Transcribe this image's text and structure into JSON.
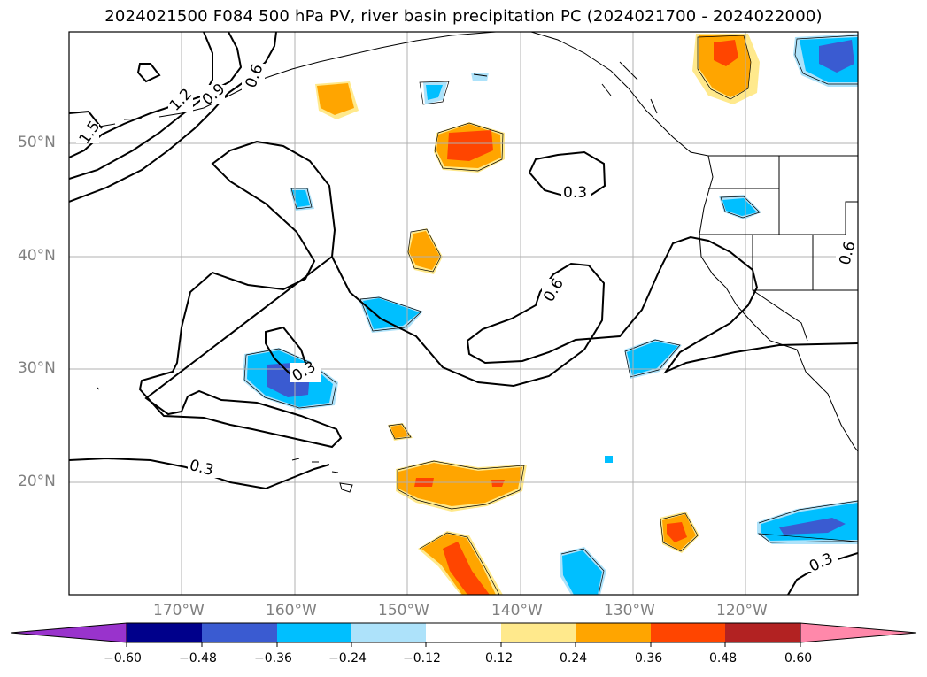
{
  "title": "2024021500 F084 500 hPa PV, river basin precipitation PC (2024021700 - 2024022000)",
  "lat_labels": [
    "50°N",
    "40°N",
    "30°N",
    "20°N"
  ],
  "lon_labels": [
    "170°W",
    "160°W",
    "150°W",
    "140°W",
    "130°W",
    "120°W"
  ],
  "contour_labels": [
    "1.5",
    "1.2",
    "0.9",
    "0.6",
    "0.3",
    "0.6",
    "0.3",
    "0.3",
    "0.6",
    "0.3"
  ],
  "colorbar": {
    "ticks": [
      "−0.60",
      "−0.48",
      "−0.36",
      "−0.24",
      "−0.12",
      "0.12",
      "0.24",
      "0.36",
      "0.48",
      "0.60"
    ],
    "colors": [
      "#9933cc",
      "#00008b",
      "#3a5bd1",
      "#00bfff",
      "#ade2fa",
      "#ffffff",
      "#ffe98c",
      "#ffa500",
      "#ff4500",
      "#b22222",
      "#ff88aa"
    ]
  },
  "shading_colors": {
    "light_blue": "#ade2fa",
    "blue": "#00bfff",
    "royal_blue": "#3a5bd1",
    "yellow": "#ffe98c",
    "orange": "#ffa500",
    "red_orange": "#ff4500"
  }
}
